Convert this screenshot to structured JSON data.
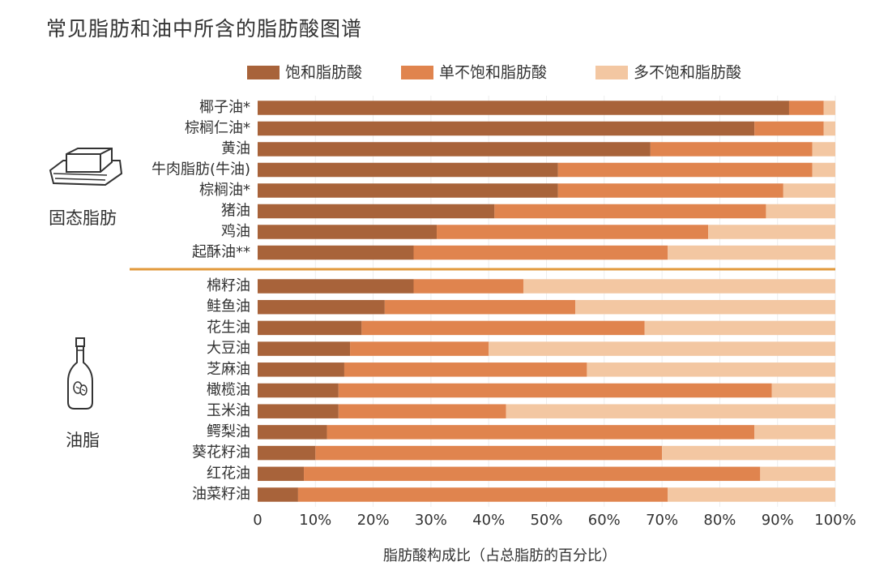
{
  "title": "常见脂肪和油中所含的脂肪酸图谱",
  "colors": {
    "saturated": "#A8633A",
    "monounsaturated": "#E0844E",
    "polyunsaturated": "#F3C7A2",
    "divider": "#E29A3C",
    "gridline": "#EDEDED"
  },
  "legend": [
    "饱和脂肪酸",
    "单不饱和脂肪酸",
    "多不饱和脂肪酸"
  ],
  "groups": [
    {
      "label": "固态脂肪",
      "icon": "butter-icon"
    },
    {
      "label": "油脂",
      "icon": "oil-bottle-icon"
    }
  ],
  "chart_data": {
    "type": "bar",
    "orientation": "horizontal",
    "stacked": true,
    "title": "常见脂肪和油中所含的脂肪酸图谱",
    "xlabel": "脂肪酸构成比（占总脂肪的百分比）",
    "xlim": [
      0,
      100
    ],
    "xticks": [
      "0",
      "10%",
      "20%",
      "30%",
      "40%",
      "50%",
      "60%",
      "70%",
      "80%",
      "90%",
      "100%"
    ],
    "legend_position": "top",
    "categories": [
      "椰子油*",
      "棕榈仁油*",
      "黄油",
      "牛肉脂肪(牛油)",
      "棕榈油*",
      "猪油",
      "鸡油",
      "起酥油**",
      "棉籽油",
      "鲑鱼油",
      "花生油",
      "大豆油",
      "芝麻油",
      "橄榄油",
      "玉米油",
      "鳄梨油",
      "葵花籽油",
      "红花油",
      "油菜籽油"
    ],
    "category_groups": [
      "固态脂肪",
      "固态脂肪",
      "固态脂肪",
      "固态脂肪",
      "固态脂肪",
      "固态脂肪",
      "固态脂肪",
      "固态脂肪",
      "油脂",
      "油脂",
      "油脂",
      "油脂",
      "油脂",
      "油脂",
      "油脂",
      "油脂",
      "油脂",
      "油脂",
      "油脂"
    ],
    "series": [
      {
        "name": "饱和脂肪酸",
        "values": [
          92,
          86,
          68,
          52,
          52,
          41,
          31,
          27,
          27,
          22,
          18,
          16,
          15,
          14,
          14,
          12,
          10,
          8,
          7
        ]
      },
      {
        "name": "单不饱和脂肪酸",
        "values": [
          6,
          12,
          28,
          44,
          39,
          47,
          47,
          44,
          19,
          33,
          49,
          24,
          42,
          75,
          29,
          74,
          60,
          79,
          64
        ]
      },
      {
        "name": "多不饱和脂肪酸",
        "values": [
          2,
          2,
          4,
          4,
          9,
          12,
          22,
          29,
          54,
          45,
          33,
          60,
          43,
          11,
          57,
          14,
          30,
          13,
          29
        ]
      }
    ]
  }
}
